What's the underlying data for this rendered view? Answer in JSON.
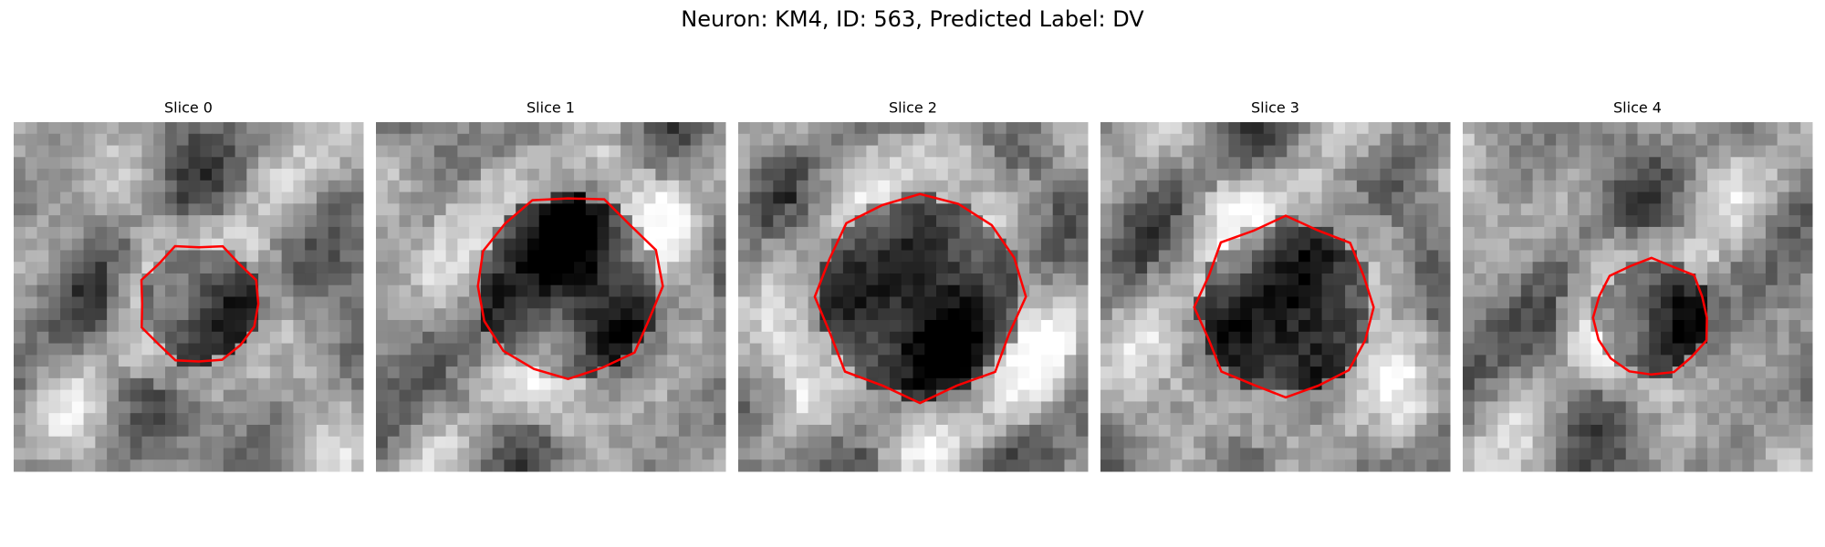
{
  "title": "Neuron: KM4, ID: 563, Predicted Label: DV",
  "panels": [
    {
      "title": "Slice 0"
    },
    {
      "title": "Slice 1"
    },
    {
      "title": "Slice 2"
    },
    {
      "title": "Slice 3"
    },
    {
      "title": "Slice 4"
    }
  ]
}
